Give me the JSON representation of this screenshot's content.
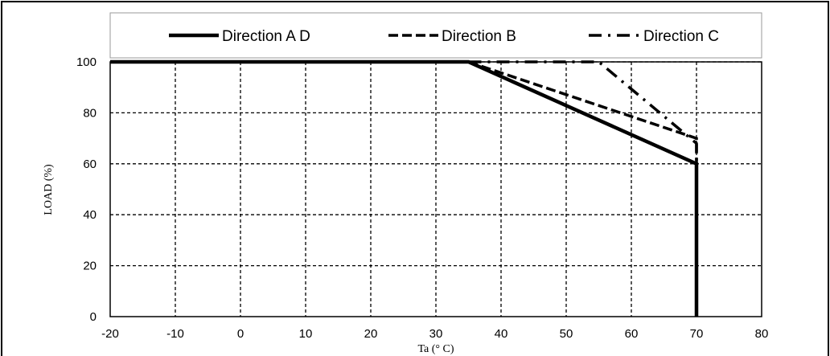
{
  "chart_data": {
    "type": "line",
    "xlabel": "Ta (° C)",
    "ylabel": "LOAD (%)",
    "xlim": [
      -20,
      80
    ],
    "ylim": [
      0,
      100
    ],
    "x_ticks": [
      -20,
      -10,
      0,
      10,
      20,
      30,
      40,
      50,
      60,
      70,
      80
    ],
    "y_ticks": [
      0,
      20,
      40,
      60,
      80,
      100
    ],
    "grid": true,
    "legend_position": "top",
    "series": [
      {
        "name": "Direction A D",
        "style": "solid",
        "color": "#000000",
        "points": [
          [
            -20,
            100
          ],
          [
            35,
            100
          ],
          [
            70,
            60
          ],
          [
            70,
            0
          ]
        ]
      },
      {
        "name": "Direction B",
        "style": "dashed",
        "color": "#000000",
        "points": [
          [
            35,
            100
          ],
          [
            70,
            70
          ],
          [
            70,
            60
          ]
        ]
      },
      {
        "name": "Direction C",
        "style": "dash-dot",
        "color": "#000000",
        "points": [
          [
            35,
            100
          ],
          [
            55,
            100
          ],
          [
            70,
            68
          ],
          [
            70,
            60
          ]
        ]
      }
    ]
  }
}
